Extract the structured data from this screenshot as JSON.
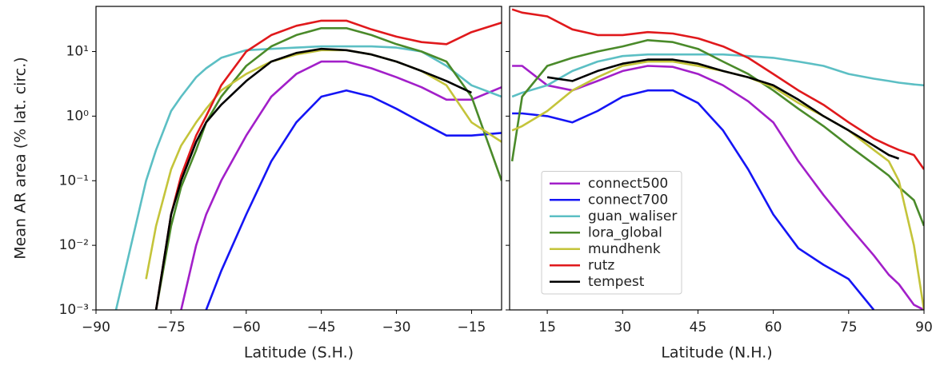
{
  "chart_data": [
    {
      "type": "line",
      "xlabel": "Latitude (S.H.)",
      "ylabel": "Mean AR area (% lat. circ.)",
      "log_y": true,
      "x": [
        -86,
        -80,
        -78,
        -75,
        -73,
        -70,
        -68,
        -65,
        -60,
        -55,
        -50,
        -45,
        -40,
        -35,
        -30,
        -25,
        -20,
        -15,
        -9
      ],
      "xlim": [
        -90,
        -9
      ],
      "xticks": [
        {
          "value": -90,
          "label": "−90"
        },
        {
          "value": -75,
          "label": "−75"
        },
        {
          "value": -60,
          "label": "−60"
        },
        {
          "value": -45,
          "label": "−45"
        },
        {
          "value": -30,
          "label": "−30"
        },
        {
          "value": -15,
          "label": "−15"
        }
      ],
      "ylim": [
        0.001,
        50
      ],
      "yticks": [
        {
          "value": 0.001,
          "label": "10⁻³"
        },
        {
          "value": 0.01,
          "label": "10⁻²"
        },
        {
          "value": 0.1,
          "label": "10⁻¹"
        },
        {
          "value": 1,
          "label": "10⁰"
        },
        {
          "value": 10,
          "label": "10¹"
        }
      ],
      "series": [
        {
          "color": "#a21fc9",
          "values": [
            null,
            null,
            null,
            null,
            0.001,
            0.01,
            0.03,
            0.1,
            0.5,
            2,
            4.5,
            7,
            7,
            5.5,
            4,
            2.8,
            1.8,
            1.8,
            2.8
          ]
        },
        {
          "color": "#1515f5",
          "values": [
            null,
            null,
            null,
            null,
            null,
            null,
            0.001,
            0.004,
            0.03,
            0.2,
            0.8,
            2,
            2.5,
            2,
            1.3,
            0.8,
            0.5,
            0.5,
            0.55
          ]
        },
        {
          "color": "#5cbfc4",
          "values": [
            0.001,
            0.1,
            0.3,
            1.2,
            2,
            4,
            5.5,
            8,
            10.5,
            11,
            11.5,
            12,
            12,
            12,
            11.5,
            10,
            6,
            3,
            2
          ]
        },
        {
          "color": "#4a8a2a",
          "values": [
            null,
            null,
            0.001,
            0.02,
            0.08,
            0.3,
            0.8,
            2,
            6,
            12,
            18,
            23,
            23,
            18,
            13,
            10,
            7,
            2,
            0.1
          ]
        },
        {
          "color": "#c4c43a",
          "values": [
            null,
            0.003,
            0.02,
            0.15,
            0.35,
            0.8,
            1.3,
            2.5,
            4.5,
            7,
            9,
            10.5,
            10.5,
            9,
            7,
            5,
            3,
            0.8,
            0.4
          ]
        },
        {
          "color": "#e0191c",
          "values": [
            null,
            null,
            0.001,
            0.03,
            0.12,
            0.5,
            1,
            3,
            10,
            18,
            25,
            30,
            30,
            22,
            17,
            14,
            13,
            20,
            28
          ]
        },
        {
          "color": "#000000",
          "values": [
            null,
            null,
            0.001,
            0.03,
            0.1,
            0.4,
            0.8,
            1.5,
            3.5,
            7,
            9.5,
            11,
            10.5,
            9,
            7,
            5,
            3.5,
            2.3,
            null
          ]
        }
      ]
    },
    {
      "type": "line",
      "xlabel": "Latitude (N.H.)",
      "log_y": true,
      "legend": "lower left",
      "x": [
        8,
        10,
        15,
        20,
        25,
        30,
        35,
        40,
        45,
        50,
        55,
        60,
        65,
        70,
        75,
        80,
        83,
        85,
        88,
        90
      ],
      "xlim": [
        7.5,
        90
      ],
      "xticks": [
        15,
        30,
        45,
        60,
        75,
        90
      ],
      "ylim": [
        0.001,
        50
      ],
      "yticks": [
        0.001,
        0.01,
        0.1,
        1,
        10
      ],
      "series": [
        {
          "name": "connect500",
          "color": "#a21fc9",
          "values": [
            6,
            6,
            3,
            2.5,
            3.5,
            5,
            6,
            5.8,
            4.5,
            3,
            1.7,
            0.8,
            0.2,
            0.06,
            0.02,
            0.007,
            0.0035,
            0.0025,
            0.0012,
            0.001
          ]
        },
        {
          "name": "connect700",
          "color": "#1515f5",
          "values": [
            1.1,
            1.1,
            1,
            0.8,
            1.2,
            2,
            2.5,
            2.5,
            1.6,
            0.6,
            0.15,
            0.03,
            0.009,
            0.005,
            0.003,
            0.001,
            null,
            null,
            null,
            null
          ]
        },
        {
          "name": "guan_waliser",
          "color": "#5cbfc4",
          "values": [
            2,
            2.3,
            3,
            5,
            7,
            8.5,
            9,
            9,
            9,
            9,
            8.5,
            8,
            7,
            6,
            4.5,
            3.8,
            3.5,
            3.3,
            3.1,
            3
          ]
        },
        {
          "name": "lora_global",
          "color": "#4a8a2a",
          "values": [
            0.2,
            2,
            6,
            8,
            10,
            12,
            15,
            14,
            11,
            7,
            4.5,
            2.5,
            1.3,
            0.7,
            0.35,
            0.18,
            0.12,
            0.08,
            0.05,
            0.02
          ]
        },
        {
          "name": "mundhenk",
          "color": "#c4c43a",
          "values": [
            0.6,
            0.7,
            1.2,
            2.5,
            4,
            6,
            7,
            7,
            6,
            5,
            4,
            2.8,
            1.6,
            1,
            0.6,
            0.3,
            0.2,
            0.1,
            0.01,
            0.001
          ]
        },
        {
          "name": "rutz",
          "color": "#e0191c",
          "values": [
            45,
            40,
            35,
            22,
            18,
            18,
            20,
            19,
            16,
            12,
            8,
            4.5,
            2.5,
            1.5,
            0.8,
            0.45,
            0.35,
            0.3,
            0.25,
            0.15
          ]
        },
        {
          "name": "tempest",
          "color": "#000000",
          "values": [
            null,
            null,
            4,
            3.5,
            5,
            6.5,
            7.5,
            7.5,
            6.5,
            5,
            4,
            3,
            1.8,
            1,
            0.6,
            0.35,
            0.25,
            0.22,
            null,
            null
          ]
        }
      ]
    }
  ]
}
